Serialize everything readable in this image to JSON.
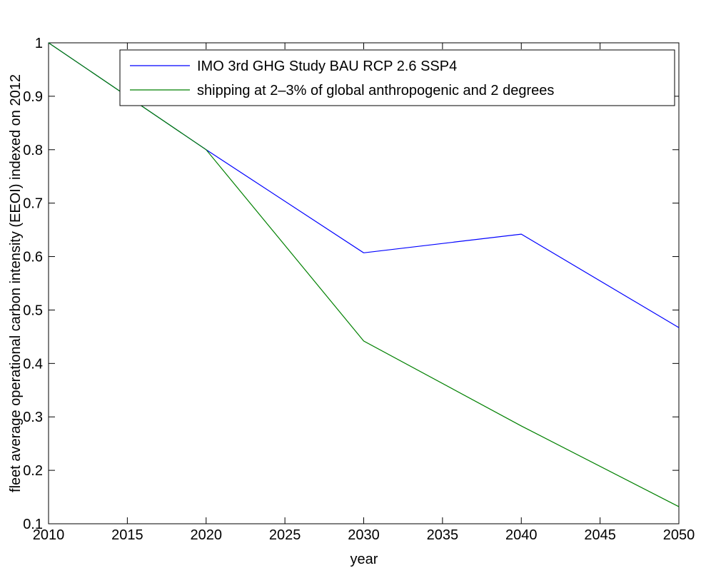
{
  "chart_data": {
    "type": "line",
    "xlabel": "year",
    "ylabel": "fleet average operational carbon intensity (EEOI) indexed on 2012",
    "x": [
      2010,
      2020,
      2030,
      2040,
      2050
    ],
    "series": [
      {
        "name": "IMO 3rd GHG Study BAU RCP 2.6 SSP4",
        "color": "#0000ff",
        "values": [
          1,
          0.8,
          0.607,
          0.642,
          0.467
        ]
      },
      {
        "name": "shipping at 2–3% of global anthropogenic and 2 degrees",
        "color": "#008000",
        "values": [
          1,
          0.8,
          0.442,
          0.283,
          0.132
        ]
      }
    ],
    "xlim": [
      2010,
      2050
    ],
    "xticks": [
      2010,
      2015,
      2020,
      2025,
      2030,
      2035,
      2040,
      2045,
      2050
    ],
    "ylim": [
      0.1,
      1
    ],
    "yticks": [
      0.1,
      0.2,
      0.3,
      0.4,
      0.5,
      0.6,
      0.7,
      0.8,
      0.9,
      1
    ],
    "grid": false,
    "legend": "northeast"
  }
}
